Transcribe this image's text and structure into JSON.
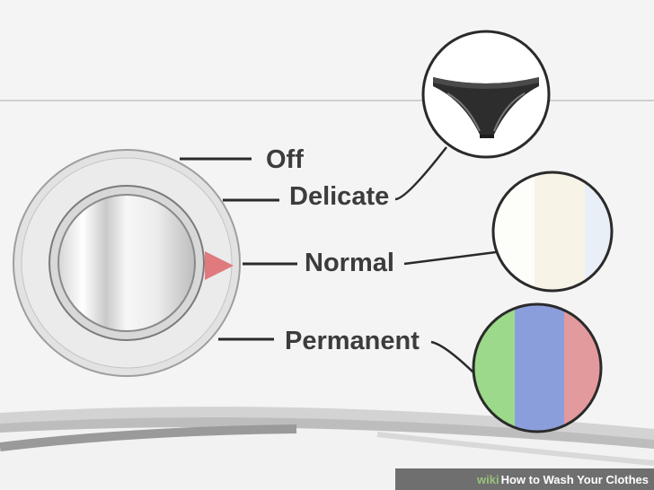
{
  "dial": {
    "settings": [
      {
        "label": "Off"
      },
      {
        "label": "Delicate"
      },
      {
        "label": "Normal"
      },
      {
        "label": "Permanent"
      }
    ],
    "pointer_color": "#e07a7f"
  },
  "swatches": {
    "normal_colors": [
      "#fdfdf9",
      "#f7f3e6",
      "#e9eff7"
    ],
    "permanent_colors": [
      "#9cd98a",
      "#8b9edc",
      "#e39a9d"
    ],
    "delicate_icon": "underwear-icon"
  },
  "watermark": {
    "brand": "wiki",
    "title": "How to Wash Your Clothes"
  }
}
